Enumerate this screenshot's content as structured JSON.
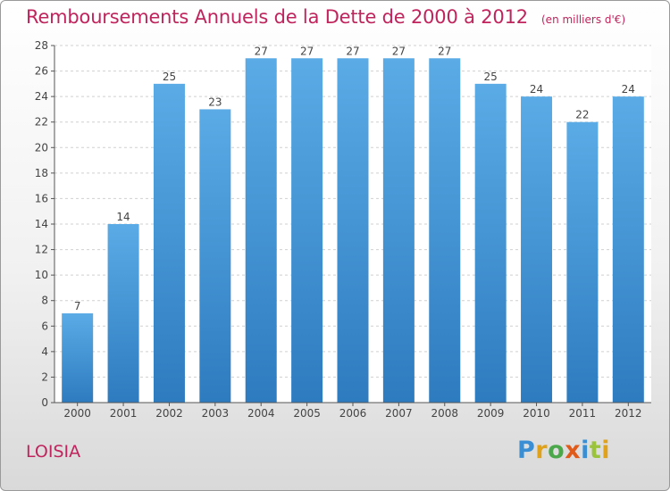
{
  "header": {
    "title": "Remboursements Annuels de la Dette de 2000 à 2012",
    "unit": "(en milliers d'€)"
  },
  "footer": {
    "commune": "LOISIA",
    "logo": {
      "text": "Proxiti",
      "letters": [
        "P",
        "r",
        "o",
        "x",
        "i",
        "t",
        "i"
      ],
      "colors": [
        "#3a8fd4",
        "#e0a21a",
        "#4aa84a",
        "#e05a1a",
        "#3a8fd4",
        "#9bc43c",
        "#e0a21a"
      ]
    }
  },
  "colors": {
    "title": "#c0245c",
    "bar_light": "#5aabe6",
    "bar_dark": "#2e7bbf",
    "axis": "#555555",
    "grid": "#d0d0d0"
  },
  "chart_data": {
    "type": "bar",
    "categories": [
      "2000",
      "2001",
      "2002",
      "2003",
      "2004",
      "2005",
      "2006",
      "2007",
      "2008",
      "2009",
      "2010",
      "2011",
      "2012"
    ],
    "values": [
      7,
      14,
      25,
      23,
      27,
      27,
      27,
      27,
      27,
      25,
      24,
      22,
      24
    ],
    "data_labels": [
      "7",
      "14",
      "25",
      "23",
      "27",
      "27",
      "27",
      "27",
      "27",
      "25",
      "24",
      "22",
      "24"
    ],
    "ylim": [
      0,
      28
    ],
    "yticks": [
      "0",
      "2",
      "4",
      "6",
      "8",
      "10",
      "12",
      "14",
      "16",
      "18",
      "20",
      "22",
      "24",
      "26",
      "28"
    ],
    "title": "Remboursements Annuels de la Dette de 2000 à 2012",
    "xlabel": "",
    "ylabel": "",
    "grid": true,
    "legend": "none"
  }
}
